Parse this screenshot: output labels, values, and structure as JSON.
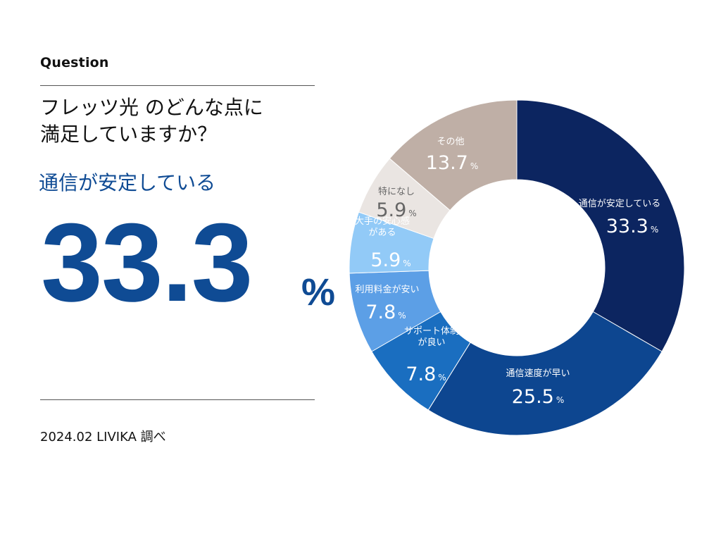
{
  "header": {
    "label": "Question",
    "question_line1": "フレッツ光 のどんな点に",
    "question_line2": "満足していますか？"
  },
  "highlight": {
    "answer": "通信が安定している",
    "value": "33.3",
    "unit": "%"
  },
  "footer": {
    "source": "2024.02 LIVIKA 調べ"
  },
  "chart_data": {
    "type": "pie",
    "subtype": "donut",
    "unit": "%",
    "start": "top, clockwise",
    "slices": [
      {
        "label": "通信が安定している",
        "label_lines": [
          "通信が安定している"
        ],
        "value": 33.3,
        "display": "33.3",
        "color": "#0c2560",
        "text_color": "#ffffff"
      },
      {
        "label": "通信速度が早い",
        "label_lines": [
          "通信速度が早い"
        ],
        "value": 25.5,
        "display": "25.5",
        "color": "#0d4690",
        "text_color": "#ffffff"
      },
      {
        "label": "サポート体制が良い",
        "label_lines": [
          "サポート体制",
          "が良い"
        ],
        "value": 7.8,
        "display": "7.8",
        "color": "#1a6ec0",
        "text_color": "#ffffff"
      },
      {
        "label": "利用料金が安い",
        "label_lines": [
          "利用料金が安い"
        ],
        "value": 7.8,
        "display": "7.8",
        "color": "#5c9fe6",
        "text_color": "#ffffff"
      },
      {
        "label": "大手の安心感がある",
        "label_lines": [
          "大手の安心感",
          "がある"
        ],
        "value": 5.9,
        "display": "5.9",
        "color": "#92caf7",
        "text_color": "#ffffff"
      },
      {
        "label": "特になし",
        "label_lines": [
          "特になし"
        ],
        "value": 5.9,
        "display": "5.9",
        "color": "#eae5e2",
        "text_color": "#666666"
      },
      {
        "label": "その他",
        "label_lines": [
          "その他"
        ],
        "value": 13.7,
        "display": "13.7",
        "color": "#bfafa6",
        "text_color": "#ffffff"
      }
    ]
  }
}
